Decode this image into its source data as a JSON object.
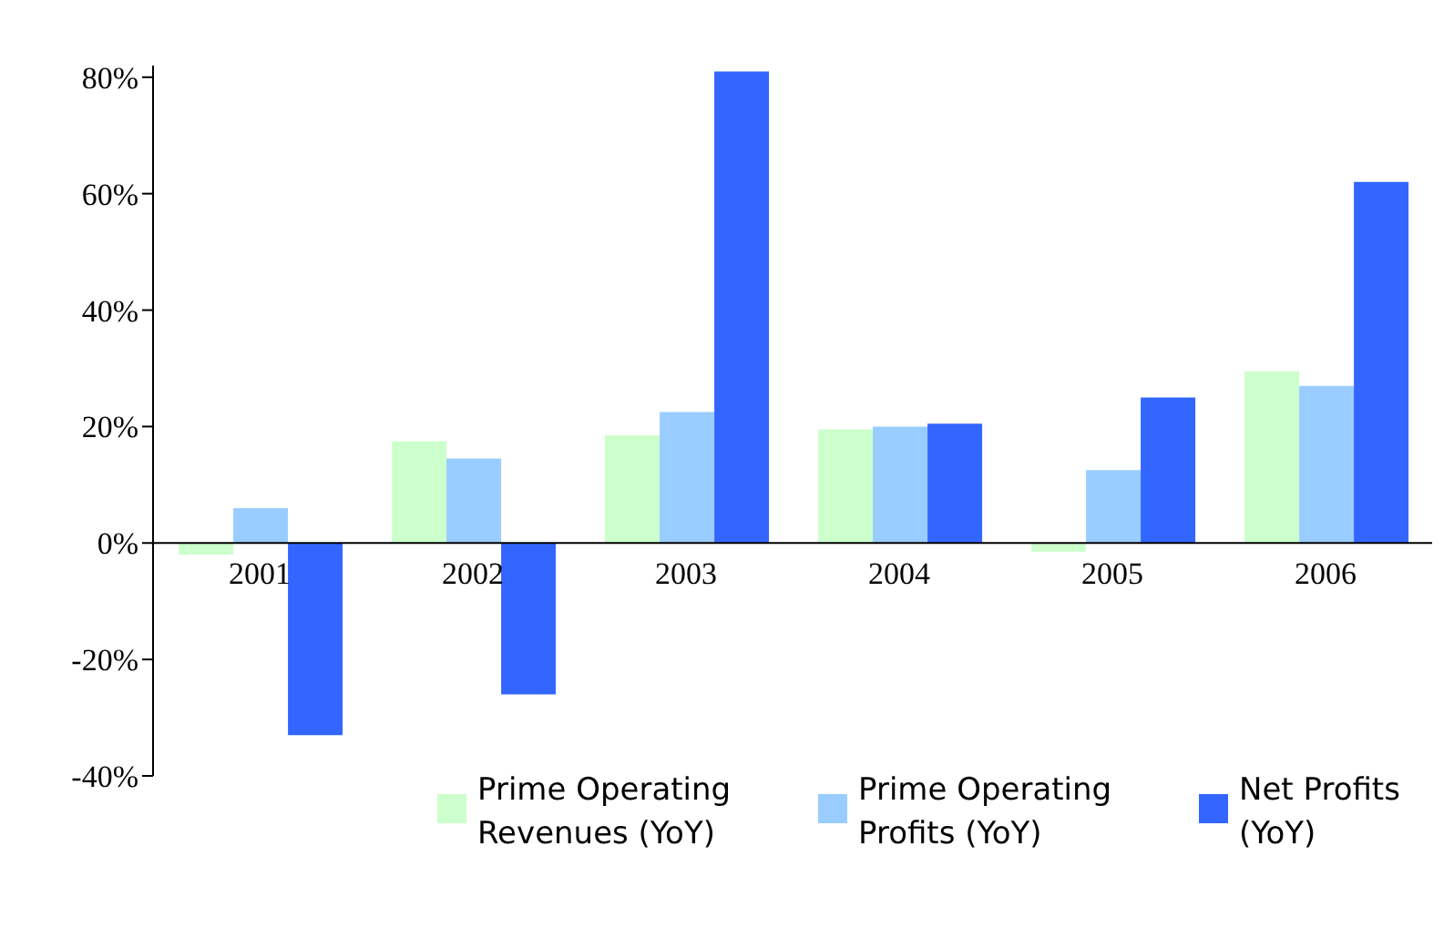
{
  "chart_data": {
    "type": "bar",
    "categories": [
      "2001",
      "2002",
      "2003",
      "2004",
      "2005",
      "2006"
    ],
    "series": [
      {
        "name": "Prime Operating Revenues (YoY)",
        "color": "#ccffcc",
        "values": [
          -2,
          17.5,
          18.5,
          19.5,
          -1.5,
          29.5
        ]
      },
      {
        "name": "Prime Operating Profits (YoY)",
        "color": "#99ccff",
        "values": [
          6,
          14.5,
          22.5,
          20,
          12.5,
          27
        ]
      },
      {
        "name": "Net Profits (YoY)",
        "color": "#3366ff",
        "values": [
          -33,
          -26,
          81,
          20.5,
          25,
          62
        ]
      }
    ],
    "ylim": [
      -40,
      82
    ],
    "yticks": [
      {
        "value": -40,
        "label": "-40%"
      },
      {
        "value": -20,
        "label": "-20%"
      },
      {
        "value": 0,
        "label": "0%"
      },
      {
        "value": 20,
        "label": "20%"
      },
      {
        "value": 40,
        "label": "40%"
      },
      {
        "value": 60,
        "label": "60%"
      },
      {
        "value": 80,
        "label": "80%"
      }
    ],
    "grid": false,
    "legend": "bottom right"
  }
}
